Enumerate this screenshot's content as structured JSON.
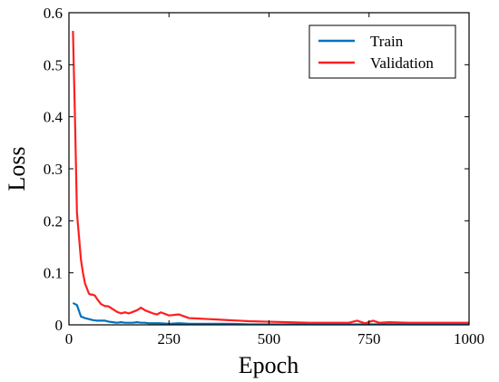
{
  "chart_data": {
    "type": "line",
    "xlabel": "Epoch",
    "ylabel": "Loss",
    "xlim": [
      0,
      1000
    ],
    "ylim": [
      0,
      0.6
    ],
    "xticks": [
      "0",
      "250",
      "500",
      "750",
      "1000"
    ],
    "yticks": [
      "0",
      "0.1",
      "0.2",
      "0.3",
      "0.4",
      "0.5",
      "0.6"
    ],
    "grid": false,
    "legend": "top-right",
    "series": [
      {
        "name": "Train",
        "color": "#0072BD",
        "x": [
          10,
          20,
          30,
          40,
          50,
          60,
          70,
          80,
          90,
          100,
          110,
          120,
          130,
          140,
          150,
          160,
          170,
          180,
          190,
          200,
          225,
          250,
          275,
          300,
          350,
          400,
          450,
          500,
          600,
          700,
          800,
          900,
          1000
        ],
        "y": [
          0.042,
          0.038,
          0.016,
          0.013,
          0.011,
          0.009,
          0.008,
          0.008,
          0.008,
          0.006,
          0.005,
          0.004,
          0.005,
          0.004,
          0.004,
          0.004,
          0.005,
          0.004,
          0.004,
          0.003,
          0.003,
          0.002,
          0.003,
          0.002,
          0.002,
          0.002,
          0.001,
          0.001,
          0.001,
          0.001,
          0.001,
          0.001,
          0.001
        ]
      },
      {
        "name": "Validation",
        "color": "#FF1F1F",
        "x": [
          10,
          15,
          20,
          25,
          30,
          35,
          40,
          45,
          50,
          55,
          60,
          65,
          70,
          75,
          80,
          85,
          90,
          95,
          100,
          110,
          120,
          130,
          140,
          150,
          160,
          170,
          180,
          190,
          200,
          210,
          220,
          230,
          250,
          275,
          300,
          325,
          350,
          375,
          400,
          450,
          500,
          550,
          600,
          650,
          700,
          720,
          740,
          760,
          775,
          800,
          850,
          900,
          950,
          1000
        ],
        "y": [
          0.565,
          0.4,
          0.215,
          0.17,
          0.125,
          0.1,
          0.08,
          0.07,
          0.06,
          0.058,
          0.058,
          0.056,
          0.05,
          0.045,
          0.04,
          0.038,
          0.036,
          0.036,
          0.035,
          0.03,
          0.025,
          0.022,
          0.024,
          0.022,
          0.025,
          0.028,
          0.033,
          0.028,
          0.025,
          0.022,
          0.02,
          0.024,
          0.018,
          0.02,
          0.013,
          0.012,
          0.011,
          0.01,
          0.009,
          0.007,
          0.006,
          0.005,
          0.004,
          0.004,
          0.004,
          0.008,
          0.003,
          0.008,
          0.004,
          0.005,
          0.004,
          0.004,
          0.004,
          0.004
        ]
      }
    ]
  }
}
